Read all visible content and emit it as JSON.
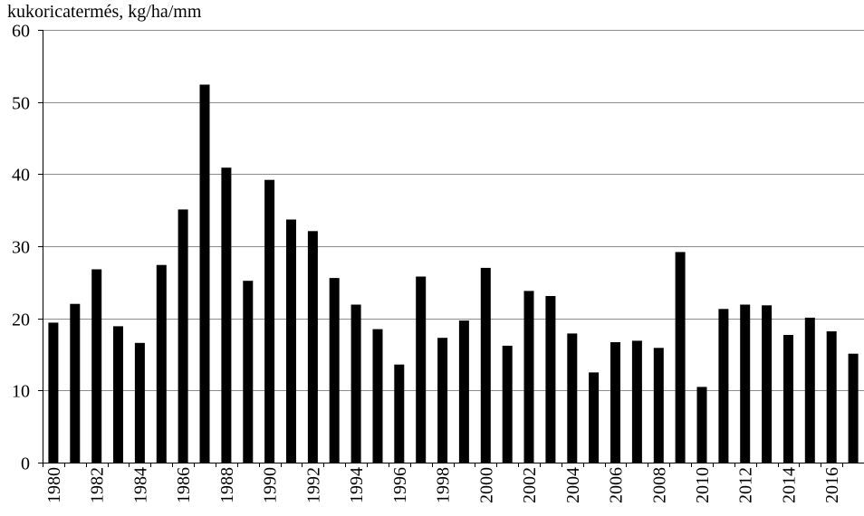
{
  "chart_data": {
    "type": "bar",
    "ylabel": "kukoricatermés, kg/ha/mm",
    "xlabel": "",
    "ylim": [
      0,
      60
    ],
    "yticks": [
      0,
      10,
      20,
      30,
      40,
      50,
      60
    ],
    "grid": true,
    "bar_color": "#000000",
    "grid_color": "#8c8c8c",
    "categories": [
      "1980",
      "1981",
      "1982",
      "1983",
      "1984",
      "1985",
      "1986",
      "1987",
      "1988",
      "1989",
      "1990",
      "1991",
      "1992",
      "1993",
      "1994",
      "1995",
      "1996",
      "1997",
      "1998",
      "1999",
      "2000",
      "2001",
      "2002",
      "2003",
      "2004",
      "2005",
      "2006",
      "2007",
      "2008",
      "2009",
      "2010",
      "2011",
      "2012",
      "2013",
      "2014",
      "2015",
      "2016",
      "2017"
    ],
    "tick_labels": [
      "1980",
      "1982",
      "1984",
      "1986",
      "1988",
      "1990",
      "1992",
      "1994",
      "1996",
      "1998",
      "2000",
      "2002",
      "2004",
      "2006",
      "2008",
      "2010",
      "2012",
      "2014",
      "2016"
    ],
    "values": [
      19.4,
      22.0,
      26.8,
      18.9,
      16.6,
      27.4,
      35.1,
      52.4,
      40.9,
      25.2,
      39.2,
      33.7,
      32.1,
      25.6,
      21.9,
      18.5,
      13.6,
      25.8,
      17.3,
      19.7,
      27.0,
      16.2,
      23.8,
      23.1,
      17.9,
      12.5,
      16.7,
      16.9,
      15.9,
      29.2,
      10.5,
      21.3,
      21.9,
      21.8,
      17.7,
      20.1,
      18.2,
      15.1
    ]
  }
}
